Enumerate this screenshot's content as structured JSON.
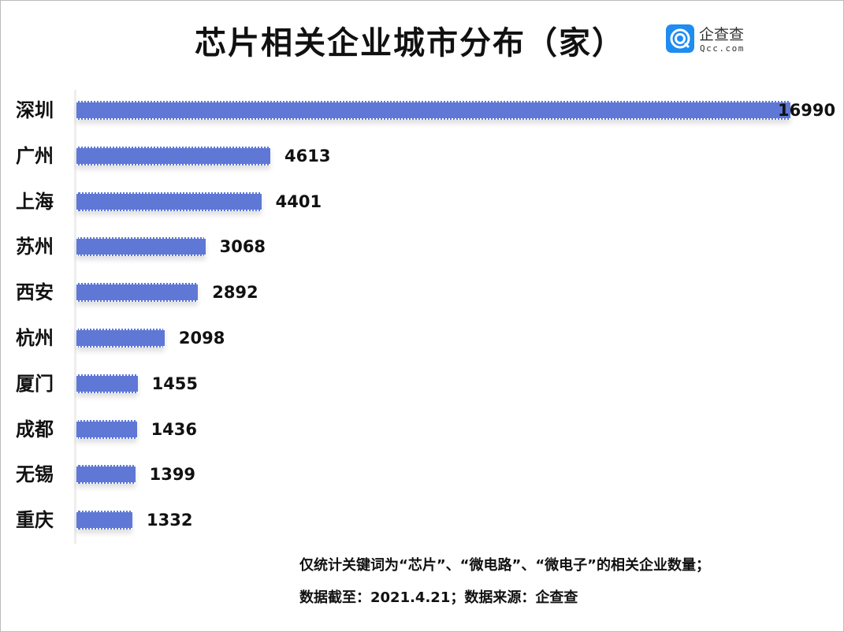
{
  "chart_data": {
    "type": "bar",
    "orientation": "horizontal",
    "title": "芯片相关企业城市分布（家）",
    "categories": [
      "深圳",
      "广州",
      "上海",
      "苏州",
      "西安",
      "杭州",
      "厦门",
      "成都",
      "无锡",
      "重庆"
    ],
    "values": [
      16990,
      4613,
      4401,
      3068,
      2892,
      2098,
      1455,
      1436,
      1399,
      1332
    ],
    "xlim": [
      0,
      16990
    ],
    "grid": false,
    "bar_color": "#5f78d6"
  },
  "logo": {
    "cn": "企查查",
    "en": "Qcc.com",
    "color": "#1e8cf0"
  },
  "notes": [
    "仅统计关键词为“芯片”、“微电路”、“微电子”的相关企业数量；",
    "数据截至：2021.4.21；数据来源：企查查"
  ]
}
